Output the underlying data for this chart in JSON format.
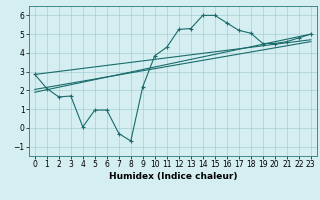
{
  "xlabel": "Humidex (Indice chaleur)",
  "bg_color": "#d4eef2",
  "grid_color": "#a8cfd4",
  "line_color": "#1a6b6b",
  "xlim": [
    -0.5,
    23.5
  ],
  "ylim": [
    -1.5,
    6.5
  ],
  "xticks": [
    0,
    1,
    2,
    3,
    4,
    5,
    6,
    7,
    8,
    9,
    10,
    11,
    12,
    13,
    14,
    15,
    16,
    17,
    18,
    19,
    20,
    21,
    22,
    23
  ],
  "yticks": [
    -1,
    0,
    1,
    2,
    3,
    4,
    5,
    6
  ],
  "zigzag_x": [
    0,
    1,
    2,
    3,
    4,
    5,
    6,
    7,
    8,
    9,
    10,
    11,
    12,
    13,
    14,
    15,
    16,
    17,
    18,
    19,
    20,
    21,
    22,
    23
  ],
  "zigzag_y": [
    2.85,
    2.1,
    1.65,
    1.7,
    0.05,
    0.95,
    0.95,
    -0.3,
    -0.7,
    2.2,
    3.85,
    4.3,
    5.25,
    5.3,
    6.0,
    6.0,
    5.6,
    5.2,
    5.05,
    4.5,
    4.5,
    4.6,
    4.8,
    5.0
  ],
  "line1_x": [
    0,
    23
  ],
  "line1_y": [
    2.85,
    4.7
  ],
  "line2_x": [
    0,
    23
  ],
  "line2_y": [
    2.05,
    4.6
  ],
  "line3_x": [
    0,
    23
  ],
  "line3_y": [
    1.9,
    5.0
  ]
}
